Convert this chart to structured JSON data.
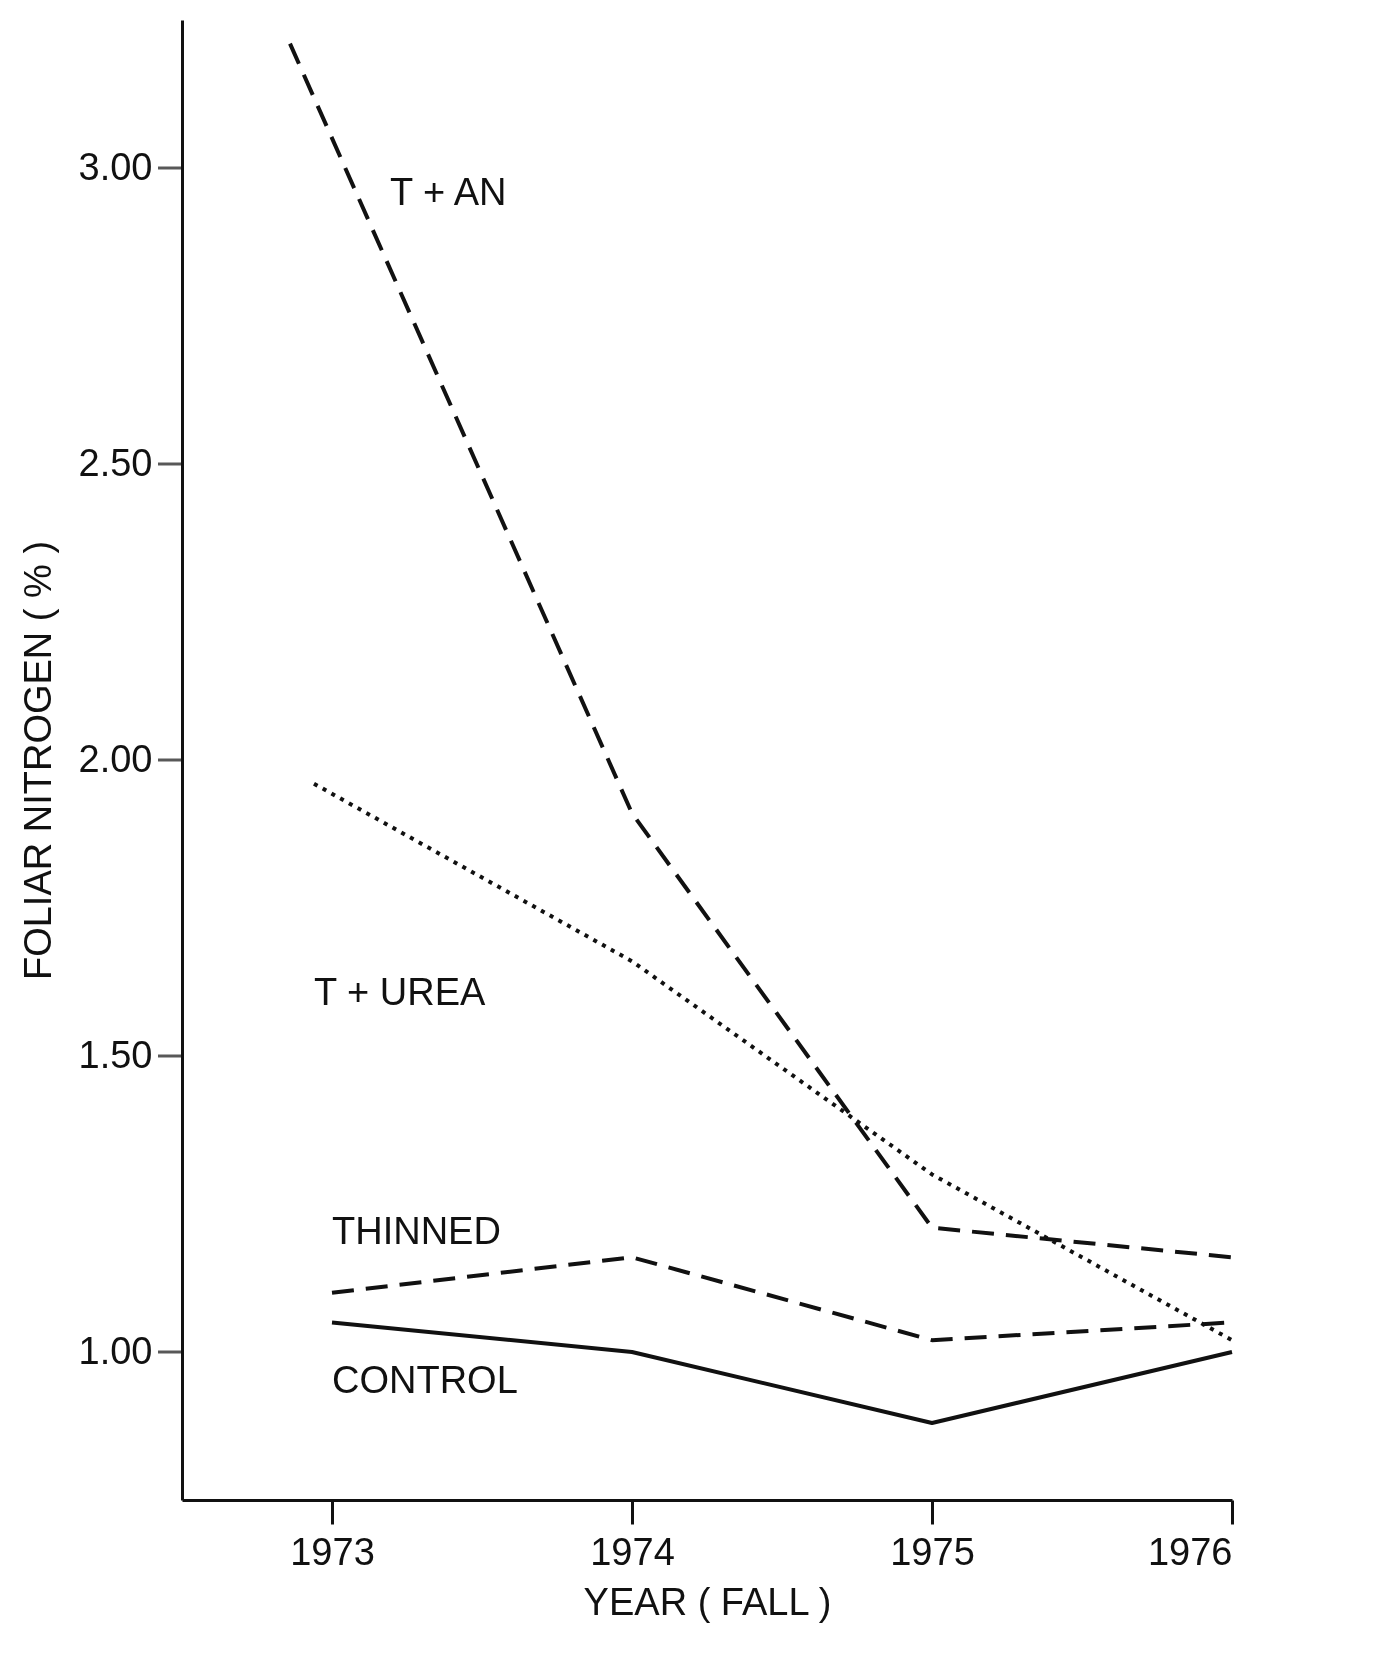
{
  "chart_data": {
    "type": "line",
    "xlabel": "YEAR ( FALL )",
    "ylabel": "FOLIAR NITROGEN ( % )",
    "xlim": [
      1972.5,
      1976
    ],
    "xticks": [
      1973,
      1974,
      1975,
      1976
    ],
    "ylim": [
      0.75,
      3.25
    ],
    "yticks": [
      {
        "value": 1,
        "label": "1.00"
      },
      {
        "value": 1.5,
        "label": "1.50"
      },
      {
        "value": 2,
        "label": "2.00"
      },
      {
        "value": 2.5,
        "label": "2.50"
      },
      {
        "value": 3,
        "label": "3.00"
      }
    ],
    "grid": false,
    "series": [
      {
        "name": "T + AN",
        "color": "#111111",
        "line_style": "dashed",
        "x": [
          1972.86,
          1974,
          1975,
          1976
        ],
        "values": [
          3.21,
          1.91,
          1.21,
          1.16
        ]
      },
      {
        "name": "T + UREA",
        "color": "#111111",
        "line_style": "dotted",
        "x": [
          1972.94,
          1974,
          1975,
          1976
        ],
        "values": [
          1.96,
          1.66,
          1.3,
          1.02
        ]
      },
      {
        "name": "THINNED",
        "color": "#111111",
        "line_style": "dashed",
        "x": [
          1973,
          1974,
          1975,
          1976
        ],
        "values": [
          1.1,
          1.16,
          1.02,
          1.05
        ]
      },
      {
        "name": "CONTROL",
        "color": "#111111",
        "line_style": "solid",
        "x": [
          1973,
          1974,
          1975,
          1976
        ],
        "values": [
          1.05,
          1.0,
          0.88,
          1.0
        ]
      }
    ]
  }
}
